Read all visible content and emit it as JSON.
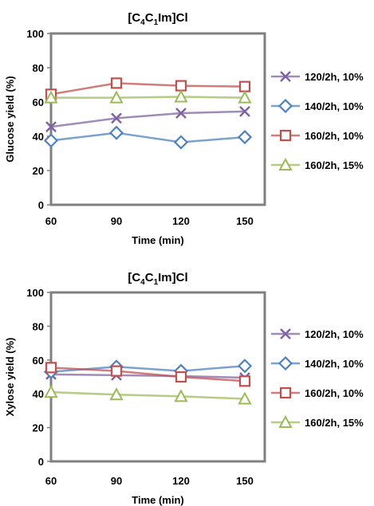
{
  "chart_data": [
    {
      "type": "line",
      "title": "[C4C1Im]Cl",
      "title_parts": {
        "pre": "[C",
        "sub1": "4",
        "mid": "C",
        "sub2": "1",
        "post": "Im]Cl"
      },
      "xlabel": "Time (min)",
      "ylabel": "Glucose yield (%)",
      "x": [
        60,
        90,
        120,
        150
      ],
      "ylim": [
        0,
        100
      ],
      "yticks": [
        0,
        20,
        40,
        60,
        80,
        100
      ],
      "grid": false,
      "legend": "right",
      "series": [
        {
          "name": "120/2h, 10%",
          "color": "#8064a2",
          "marker": "x",
          "values": [
            45.5,
            50.5,
            53.5,
            54.5
          ]
        },
        {
          "name": "140/2h, 10%",
          "color": "#4f81bd",
          "marker": "diamond",
          "values": [
            37.5,
            42,
            36.5,
            39.5
          ]
        },
        {
          "name": "160/2h, 10%",
          "color": "#c0504d",
          "marker": "square",
          "values": [
            64.5,
            71,
            69.5,
            69
          ]
        },
        {
          "name": "160/2h, 15%",
          "color": "#9bbb59",
          "marker": "triangle",
          "values": [
            62.5,
            62.5,
            63,
            62.5
          ]
        }
      ]
    },
    {
      "type": "line",
      "title": "[C4C1Im]Cl",
      "title_parts": {
        "pre": "[C",
        "sub1": "4",
        "mid": "C",
        "sub2": "1",
        "post": "Im]Cl"
      },
      "xlabel": "Time (min)",
      "ylabel": "Xylose yield (%)",
      "x": [
        60,
        90,
        120,
        150
      ],
      "ylim": [
        0,
        100
      ],
      "yticks": [
        0,
        20,
        40,
        60,
        80,
        100
      ],
      "grid": false,
      "legend": "right",
      "series": [
        {
          "name": "120/2h, 10%",
          "color": "#8064a2",
          "marker": "x",
          "values": [
            51.5,
            51,
            50.5,
            49.5
          ]
        },
        {
          "name": "140/2h, 10%",
          "color": "#4f81bd",
          "marker": "diamond",
          "values": [
            53,
            56,
            53.5,
            56.5
          ]
        },
        {
          "name": "160/2h, 10%",
          "color": "#c0504d",
          "marker": "square",
          "values": [
            55.5,
            53.5,
            50,
            47.5
          ]
        },
        {
          "name": "160/2h, 15%",
          "color": "#9bbb59",
          "marker": "triangle",
          "values": [
            41,
            39.5,
            38.5,
            37
          ]
        }
      ]
    }
  ]
}
